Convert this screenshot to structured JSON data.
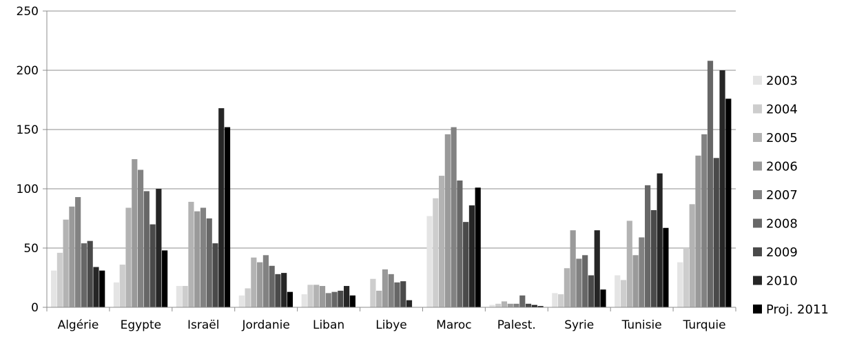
{
  "chart_data": {
    "type": "bar",
    "title": "",
    "xlabel": "",
    "ylabel": "",
    "ylim": [
      0,
      250
    ],
    "yticks": [
      0,
      50,
      100,
      150,
      200,
      250
    ],
    "grid": "horizontal",
    "legend_position": "right",
    "categories": [
      "Algérie",
      "Egypte",
      "Israël",
      "Jordanie",
      "Liban",
      "Libye",
      "Maroc",
      "Palest.",
      "Syrie",
      "Tunisie",
      "Turquie"
    ],
    "series": [
      {
        "name": "2003",
        "color": "#e4e4e4",
        "values": [
          31,
          21,
          18,
          10,
          11,
          0,
          77,
          2,
          12,
          27,
          38
        ]
      },
      {
        "name": "2004",
        "color": "#cdcdcd",
        "values": [
          46,
          36,
          18,
          16,
          19,
          24,
          92,
          3,
          11,
          23,
          50
        ]
      },
      {
        "name": "2005",
        "color": "#b3b3b3",
        "values": [
          74,
          84,
          89,
          42,
          19,
          14,
          111,
          5,
          33,
          73,
          87
        ]
      },
      {
        "name": "2006",
        "color": "#9a9a9a",
        "values": [
          85,
          125,
          81,
          38,
          18,
          32,
          146,
          3,
          65,
          44,
          128
        ]
      },
      {
        "name": "2007",
        "color": "#828282",
        "values": [
          93,
          116,
          84,
          44,
          12,
          28,
          152,
          3,
          41,
          59,
          146
        ]
      },
      {
        "name": "2008",
        "color": "#676767",
        "values": [
          54,
          98,
          75,
          35,
          13,
          21,
          107,
          10,
          44,
          103,
          208
        ]
      },
      {
        "name": "2009",
        "color": "#4a4a4a",
        "values": [
          56,
          70,
          54,
          28,
          14,
          22,
          72,
          3,
          27,
          82,
          126
        ]
      },
      {
        "name": "2010",
        "color": "#262626",
        "values": [
          34,
          100,
          168,
          29,
          18,
          6,
          86,
          2,
          65,
          113,
          200
        ]
      },
      {
        "name": "Proj. 2011",
        "color": "#000000",
        "values": [
          31,
          48,
          152,
          13,
          10,
          0,
          101,
          1,
          15,
          67,
          176
        ]
      }
    ]
  }
}
